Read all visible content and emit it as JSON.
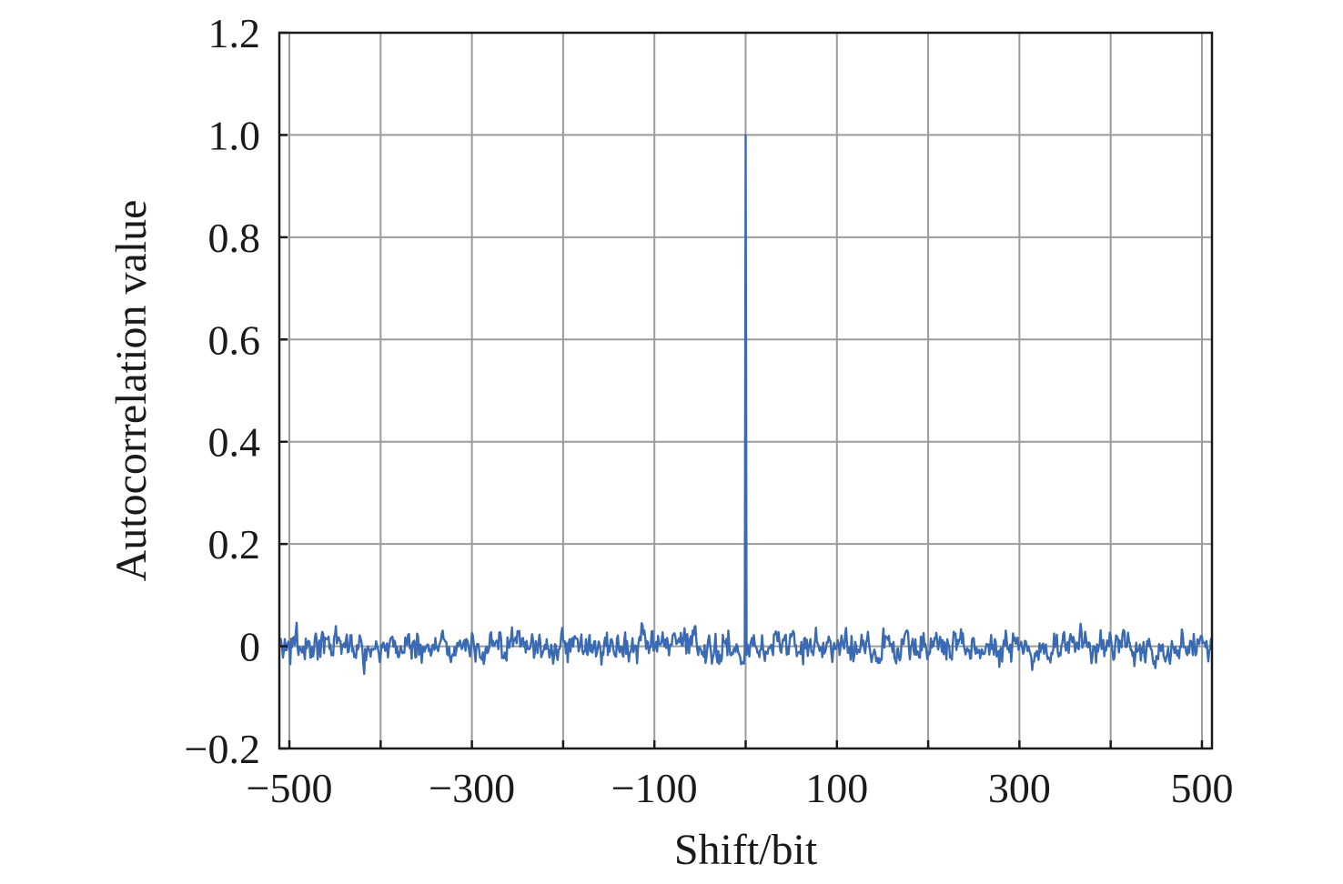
{
  "chart_data": {
    "type": "line",
    "xlabel": "Shift/bit",
    "ylabel": "Autocorrelation value",
    "xlim": [
      -511,
      511
    ],
    "ylim": [
      -0.2,
      1.2
    ],
    "x_major_ticks": [
      -500,
      -400,
      -300,
      -200,
      -100,
      0,
      100,
      200,
      300,
      400,
      500
    ],
    "x_tick_labels": [
      {
        "value": -500,
        "label": "−500"
      },
      {
        "value": -300,
        "label": "−300"
      },
      {
        "value": -100,
        "label": "−100"
      },
      {
        "value": 100,
        "label": "100"
      },
      {
        "value": 300,
        "label": "300"
      },
      {
        "value": 500,
        "label": "500"
      }
    ],
    "y_ticks": [
      {
        "value": 1.2,
        "label": "1.2"
      },
      {
        "value": 1.0,
        "label": "1.0"
      },
      {
        "value": 0.8,
        "label": "0.8"
      },
      {
        "value": 0.6,
        "label": "0.6"
      },
      {
        "value": 0.4,
        "label": "0.4"
      },
      {
        "value": 0.2,
        "label": "0.2"
      },
      {
        "value": 0,
        "label": "0"
      },
      {
        "value": -0.2,
        "label": "−0.2"
      }
    ],
    "grid": true,
    "series": [
      {
        "color": "#3a6ab4",
        "description": "autocorrelation vs shift; peak of 1.0 at shift 0, sidelobes within about ±0.06",
        "peak": {
          "x": 0,
          "y": 1.0
        },
        "sidelobe_range": [
          -0.06,
          0.06
        ],
        "x_range": [
          -510,
          510
        ]
      }
    ]
  }
}
